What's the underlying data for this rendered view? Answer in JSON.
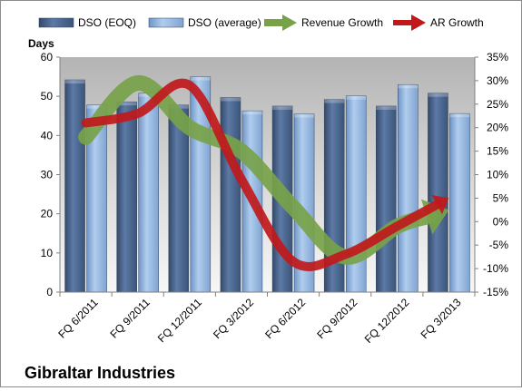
{
  "chart_data": {
    "type": "bar",
    "title": "Gibraltar Industries",
    "ylabel": "Days",
    "categories": [
      "FQ 6/2011",
      "FQ 9/2011",
      "FQ 12/2011",
      "FQ 3/2012",
      "FQ 6/2012",
      "FQ 9/2012",
      "FQ 12/2012",
      "FQ 3/2013"
    ],
    "series": [
      {
        "name": "DSO (EOQ)",
        "kind": "bar",
        "axis": "left",
        "color": "#4f6d96",
        "values": [
          54.2,
          48.6,
          47.8,
          49.7,
          47.5,
          49.2,
          47.5,
          50.8
        ]
      },
      {
        "name": "DSO (average)",
        "kind": "bar",
        "axis": "left",
        "color": "#9dbfe4",
        "values": [
          47.8,
          50.8,
          55.0,
          46.3,
          45.5,
          50.1,
          53.0,
          45.6
        ]
      },
      {
        "name": "Revenue Growth",
        "kind": "line",
        "axis": "right",
        "unit": "%",
        "color": "#77a24a",
        "values": [
          18,
          29.5,
          20,
          15,
          3,
          -7.5,
          -1,
          2.5
        ]
      },
      {
        "name": "AR Growth",
        "kind": "line",
        "axis": "right",
        "unit": "%",
        "color": "#c0191b",
        "values": [
          21,
          23,
          29,
          9,
          -8.5,
          -7,
          -1,
          5
        ]
      }
    ],
    "y_left": {
      "min": 0,
      "max": 60,
      "step": 10
    },
    "y_right": {
      "min": -15,
      "max": 35,
      "step": 5,
      "format": "percent"
    },
    "legend": "top",
    "grid": false
  }
}
